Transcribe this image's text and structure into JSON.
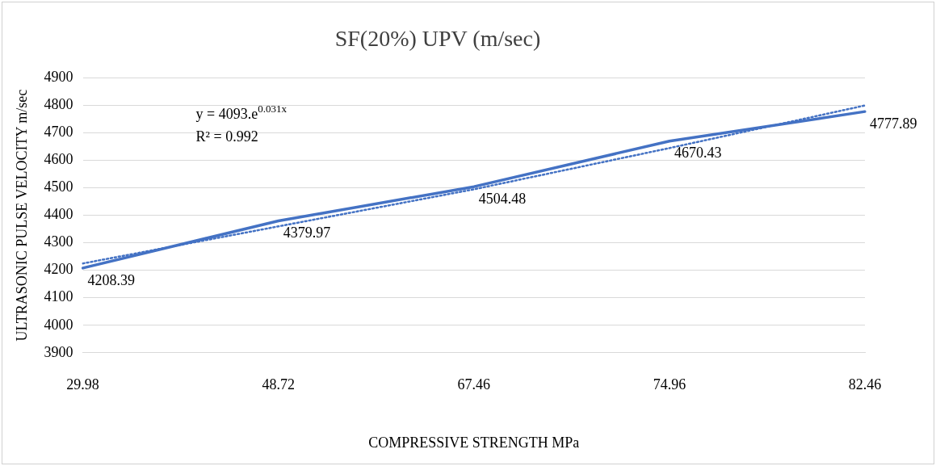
{
  "chart_data": {
    "type": "line",
    "title": "SF(20%) UPV (m/sec)",
    "xlabel": "COMPRESSIVE STRENGTH MPa",
    "ylabel": "ULTRASONIC PULSE VELOCITY m/sec",
    "categories": [
      "29.98",
      "48.72",
      "67.46",
      "74.96",
      "82.46"
    ],
    "series": [
      {
        "color": "#4472c4",
        "values": [
          4208.39,
          4379.97,
          4504.48,
          4670.43,
          4777.89
        ],
        "line_style": "solid",
        "data_labels": true
      },
      {
        "type": "line",
        "x": [
          "29.98",
          "48.72",
          "67.46",
          "74.96",
          "82.46"
        ],
        "color": "#4472c4",
        "values": [
          4225,
          4360,
          4495,
          4645,
          4800
        ],
        "line_style": "dotted"
      }
    ],
    "ylim": [
      3900,
      4900
    ],
    "yticks": [
      3900,
      4000,
      4100,
      4200,
      4300,
      4400,
      4500,
      4600,
      4700,
      4800,
      4900
    ],
    "grid": "y",
    "legend": false,
    "marker": "none",
    "annotations": [
      "y = 4093.e$^{0.031x}$",
      "R² = 0.992"
    ]
  }
}
